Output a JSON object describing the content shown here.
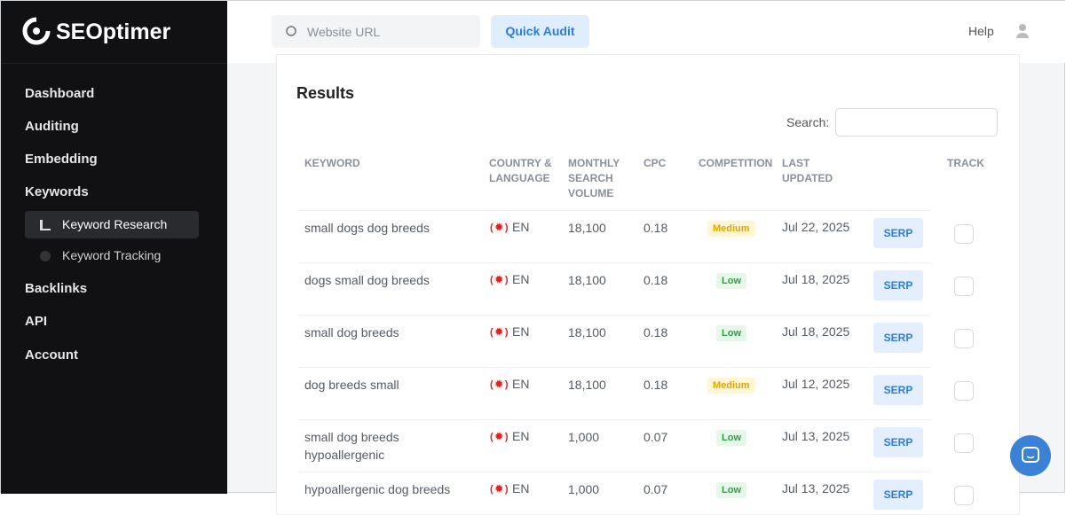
{
  "sidebar": {
    "logo": "SEOptimer",
    "nav": [
      {
        "label": "Dashboard"
      },
      {
        "label": "Auditing"
      },
      {
        "label": "Embedding"
      },
      {
        "label": "Keywords"
      }
    ],
    "subnav": [
      {
        "label": "Keyword Research"
      },
      {
        "label": "Keyword Tracking"
      }
    ],
    "nav_after": [
      {
        "label": "Backlinks"
      },
      {
        "label": "API"
      },
      {
        "label": "Account"
      }
    ]
  },
  "topbar": {
    "search_placeholder": "Website URL",
    "button": "Quick Audit",
    "help": "Help"
  },
  "results": {
    "title": "Results",
    "search_label": "Search:",
    "columns": [
      "KEYWORD",
      "COUNTRY & LANGUAGE",
      "MONTHLY SEARCH VOLUME",
      "CPC",
      "COMPETITION",
      "LAST UPDATED",
      "TRACK"
    ],
    "rows": [
      {
        "keyword": "small dogs dog breeds",
        "language": "EN",
        "volume": "18,100",
        "cpc": "0.18",
        "competition": "Medium",
        "last_updated": "Jul 22, 2025",
        "action": "SERP"
      },
      {
        "keyword": "dogs small dog breeds",
        "language": "EN",
        "volume": "18,100",
        "cpc": "0.18",
        "competition": "Low",
        "last_updated": "Jul 18, 2025",
        "action": "SERP"
      },
      {
        "keyword": "small dog breeds",
        "language": "EN",
        "volume": "18,100",
        "cpc": "0.18",
        "competition": "Low",
        "last_updated": "Jul 18, 2025",
        "action": "SERP"
      },
      {
        "keyword": "dog breeds small",
        "language": "EN",
        "volume": "18,100",
        "cpc": "0.18",
        "competition": "Medium",
        "last_updated": "Jul 12, 2025",
        "action": "SERP"
      },
      {
        "keyword": "small dog breeds hypoallergenic",
        "language": "EN",
        "volume": "1,000",
        "cpc": "0.07",
        "competition": "Low",
        "last_updated": "Jul 13, 2025",
        "action": "SERP"
      },
      {
        "keyword": "hypoallergenic dog breeds",
        "language": "EN",
        "volume": "1,000",
        "cpc": "0.07",
        "competition": "Low",
        "last_updated": "Jul 13, 2025",
        "action": "SERP"
      }
    ]
  }
}
